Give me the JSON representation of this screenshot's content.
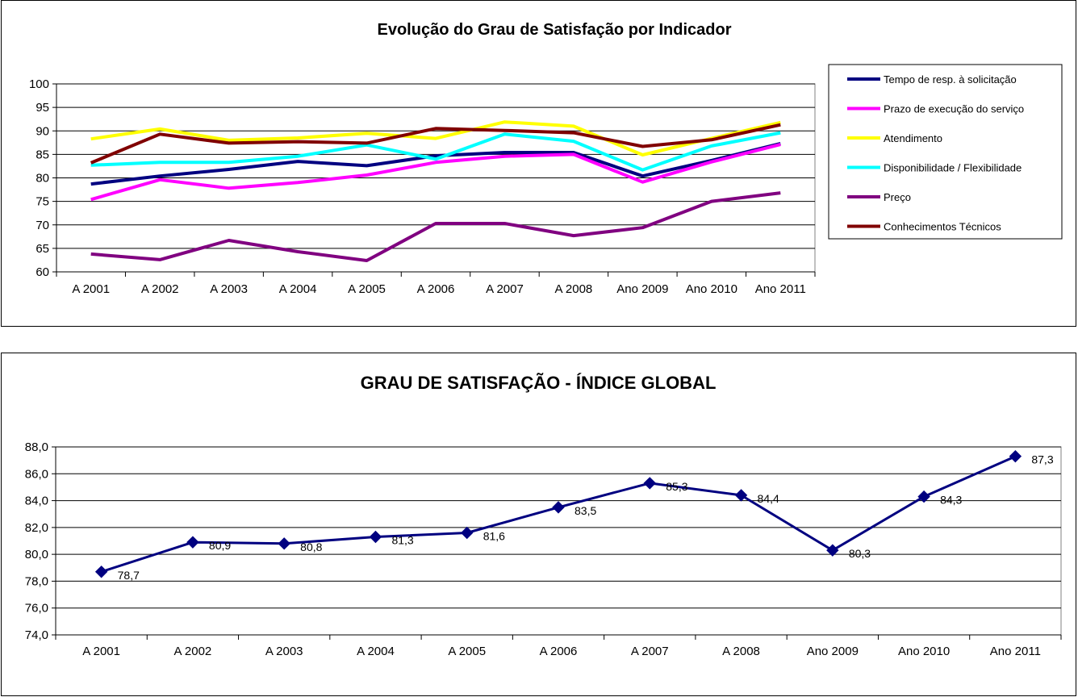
{
  "chart_data": [
    {
      "type": "line",
      "title": "Evolução do Grau de Satisfação por Indicador",
      "categories": [
        "A 2001",
        "A 2002",
        "A 2003",
        "A 2004",
        "A 2005",
        "A 2006",
        "A 2007",
        "A 2008",
        "Ano 2009",
        "Ano 2010",
        "Ano 2011"
      ],
      "ylim": [
        60,
        100
      ],
      "yticks": [
        "60",
        "65",
        "70",
        "75",
        "80",
        "85",
        "90",
        "95",
        "100"
      ],
      "grid": true,
      "legend_position": "right",
      "series": [
        {
          "name": "Tempo de resp. à solicitação",
          "color": "#000080",
          "values": [
            78.7,
            80.4,
            81.8,
            83.5,
            82.6,
            84.7,
            85.4,
            85.4,
            80.4,
            83.7,
            87.3
          ]
        },
        {
          "name": "Prazo de execução do serviço",
          "color": "#FF00FF",
          "values": [
            75.4,
            79.6,
            77.8,
            79.0,
            80.6,
            83.3,
            84.6,
            85.0,
            79.1,
            83.4,
            87.1
          ]
        },
        {
          "name": "Atendimento",
          "color": "#FFFF00",
          "values": [
            88.3,
            90.4,
            88.0,
            88.5,
            89.5,
            88.4,
            91.9,
            91.0,
            84.9,
            88.4,
            91.8
          ]
        },
        {
          "name": "Disponibilidade / Flexibilidade",
          "color": "#00FFFF",
          "values": [
            82.7,
            83.3,
            83.3,
            84.6,
            87.0,
            84.0,
            89.3,
            87.8,
            81.7,
            86.8,
            89.6
          ]
        },
        {
          "name": "Preço",
          "color": "#800080",
          "values": [
            63.8,
            62.6,
            66.7,
            64.3,
            62.4,
            70.3,
            70.3,
            67.7,
            69.4,
            75.0,
            76.8
          ]
        },
        {
          "name": "Conhecimentos Técnicos",
          "color": "#800000",
          "values": [
            83.2,
            89.3,
            87.4,
            87.7,
            87.4,
            90.5,
            90.1,
            89.6,
            86.7,
            88.1,
            91.3
          ]
        }
      ]
    },
    {
      "type": "line",
      "title": "GRAU DE SATISFAÇÃO - ÍNDICE GLOBAL",
      "categories": [
        "A 2001",
        "A 2002",
        "A 2003",
        "A 2004",
        "A 2005",
        "A 2006",
        "A 2007",
        "A 2008",
        "Ano 2009",
        "Ano 2010",
        "Ano 2011"
      ],
      "ylim": [
        74,
        88
      ],
      "yticks": [
        "74,0",
        "76,0",
        "78,0",
        "80,0",
        "82,0",
        "84,0",
        "86,0",
        "88,0"
      ],
      "grid": true,
      "series": [
        {
          "color": "#000080",
          "marker": "diamond",
          "values": [
            78.7,
            80.9,
            80.8,
            81.3,
            81.6,
            83.5,
            85.3,
            84.4,
            80.3,
            84.3,
            87.3
          ],
          "labels": [
            "78,7",
            "80,9",
            "80,8",
            "81,3",
            "81,6",
            "83,5",
            "85,3",
            "84,4",
            "80,3",
            "84,3",
            "87,3"
          ]
        }
      ]
    }
  ]
}
